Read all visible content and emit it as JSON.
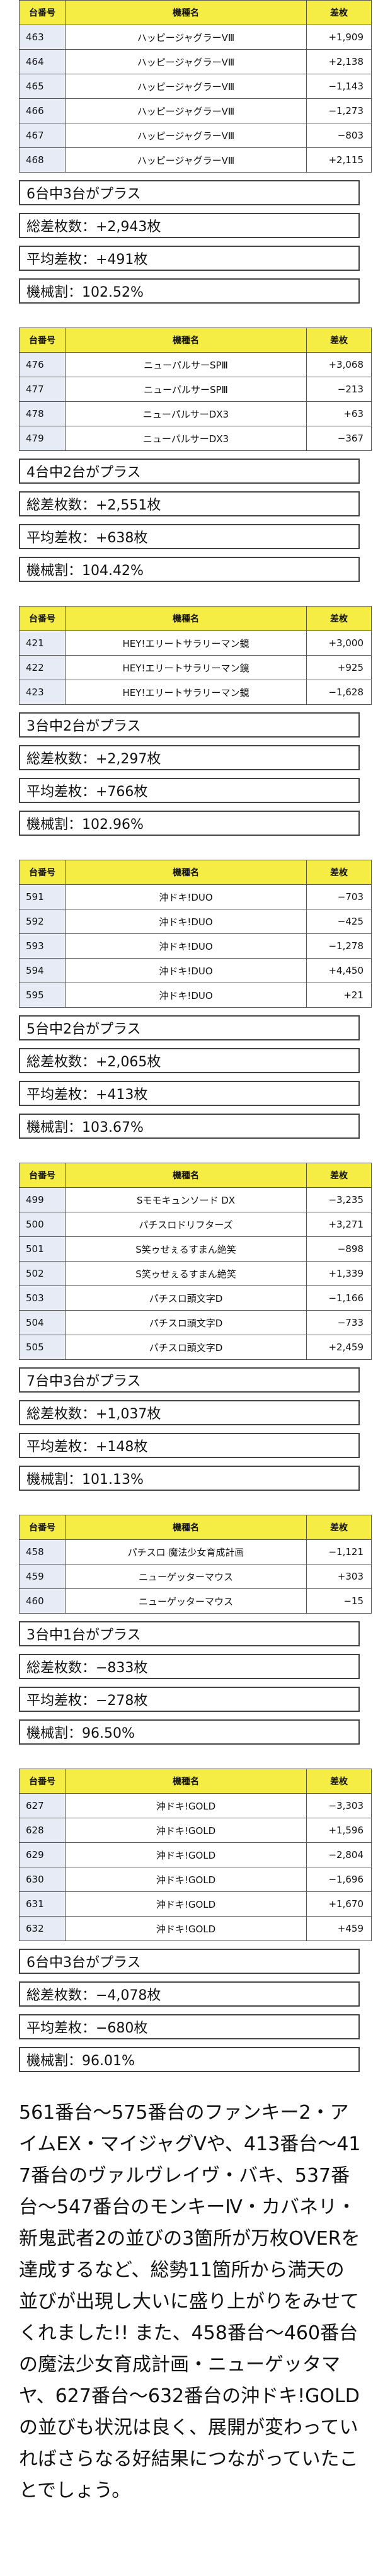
{
  "header": {
    "no": "台番号",
    "model": "機種名",
    "diff": "差枚"
  },
  "groups": [
    {
      "rows": [
        {
          "no": "463",
          "model": "ハッピージャグラーVⅢ",
          "diff": "+1,909"
        },
        {
          "no": "464",
          "model": "ハッピージャグラーVⅢ",
          "diff": "+2,138"
        },
        {
          "no": "465",
          "model": "ハッピージャグラーVⅢ",
          "diff": "−1,143"
        },
        {
          "no": "466",
          "model": "ハッピージャグラーVⅢ",
          "diff": "−1,273"
        },
        {
          "no": "467",
          "model": "ハッピージャグラーVⅢ",
          "diff": "−803"
        },
        {
          "no": "468",
          "model": "ハッピージャグラーVⅢ",
          "diff": "+2,115"
        }
      ],
      "stats": [
        "6台中3台がプラス",
        "総差枚数：+2,943枚",
        "平均差枚：+491枚",
        "機械割：102.52%"
      ]
    },
    {
      "rows": [
        {
          "no": "476",
          "model": "ニューパルサーSPⅢ",
          "diff": "+3,068"
        },
        {
          "no": "477",
          "model": "ニューパルサーSPⅢ",
          "diff": "−213"
        },
        {
          "no": "478",
          "model": "ニューパルサーDX3",
          "diff": "+63"
        },
        {
          "no": "479",
          "model": "ニューパルサーDX3",
          "diff": "−367"
        }
      ],
      "stats": [
        "4台中2台がプラス",
        "総差枚数：+2,551枚",
        "平均差枚：+638枚",
        "機械割：104.42%"
      ]
    },
    {
      "rows": [
        {
          "no": "421",
          "model": "HEY!エリートサラリーマン鏡",
          "diff": "+3,000"
        },
        {
          "no": "422",
          "model": "HEY!エリートサラリーマン鏡",
          "diff": "+925"
        },
        {
          "no": "423",
          "model": "HEY!エリートサラリーマン鏡",
          "diff": "−1,628"
        }
      ],
      "stats": [
        "3台中2台がプラス",
        "総差枚数：+2,297枚",
        "平均差枚：+766枚",
        "機械割：102.96%"
      ]
    },
    {
      "rows": [
        {
          "no": "591",
          "model": "沖ドキ!DUO",
          "diff": "−703"
        },
        {
          "no": "592",
          "model": "沖ドキ!DUO",
          "diff": "−425"
        },
        {
          "no": "593",
          "model": "沖ドキ!DUO",
          "diff": "−1,278"
        },
        {
          "no": "594",
          "model": "沖ドキ!DUO",
          "diff": "+4,450"
        },
        {
          "no": "595",
          "model": "沖ドキ!DUO",
          "diff": "+21"
        }
      ],
      "stats": [
        "5台中2台がプラス",
        "総差枚数：+2,065枚",
        "平均差枚：+413枚",
        "機械割：103.67%"
      ]
    },
    {
      "rows": [
        {
          "no": "499",
          "model": "Sモモキュンソード DX",
          "diff": "−3,235"
        },
        {
          "no": "500",
          "model": "パチスロドリフターズ",
          "diff": "+3,271"
        },
        {
          "no": "501",
          "model": "S笑ゥせぇるすまん絶笑",
          "diff": "−898"
        },
        {
          "no": "502",
          "model": "S笑ゥせぇるすまん絶笑",
          "diff": "+1,339"
        },
        {
          "no": "503",
          "model": "パチスロ頭文字D",
          "diff": "−1,166"
        },
        {
          "no": "504",
          "model": "パチスロ頭文字D",
          "diff": "−733"
        },
        {
          "no": "505",
          "model": "パチスロ頭文字D",
          "diff": "+2,459"
        }
      ],
      "stats": [
        "7台中3台がプラス",
        "総差枚数：+1,037枚",
        "平均差枚：+148枚",
        "機械割：101.13%"
      ]
    },
    {
      "rows": [
        {
          "no": "458",
          "model": "パチスロ 魔法少女育成計画",
          "diff": "−1,121"
        },
        {
          "no": "459",
          "model": "ニューゲッターマウス",
          "diff": "+303"
        },
        {
          "no": "460",
          "model": "ニューゲッターマウス",
          "diff": "−15"
        }
      ],
      "stats": [
        "3台中1台がプラス",
        "総差枚数：−833枚",
        "平均差枚：−278枚",
        "機械割：96.50%"
      ]
    },
    {
      "rows": [
        {
          "no": "627",
          "model": "沖ドキ!GOLD",
          "diff": "−3,303"
        },
        {
          "no": "628",
          "model": "沖ドキ!GOLD",
          "diff": "+1,596"
        },
        {
          "no": "629",
          "model": "沖ドキ!GOLD",
          "diff": "−2,804"
        },
        {
          "no": "630",
          "model": "沖ドキ!GOLD",
          "diff": "−1,696"
        },
        {
          "no": "631",
          "model": "沖ドキ!GOLD",
          "diff": "+1,670"
        },
        {
          "no": "632",
          "model": "沖ドキ!GOLD",
          "diff": "+459"
        }
      ],
      "stats": [
        "6台中3台がプラス",
        "総差枚数：−4,078枚",
        "平均差枚：−680枚",
        "機械割：96.01%"
      ]
    }
  ],
  "note": "561番台〜575番台のファンキー2・アイムEX・マイジャグVや、413番台〜417番台のヴァルヴレイヴ・バキ、537番台〜547番台のモンキーⅣ・カバネリ・新鬼武者2の並びの3箇所が万枚OVERを達成するなど、総勢11箇所から満天の並びが出現し大いに盛り上がりをみせてくれました!! また、458番台〜460番台の魔法少女育成計画・ニューゲッタマヤ、627番台〜632番台の沖ドキ!GOLDの並びも状況は良く、展開が変わっていればさらなる好結果につながっていたことでしょう。"
}
